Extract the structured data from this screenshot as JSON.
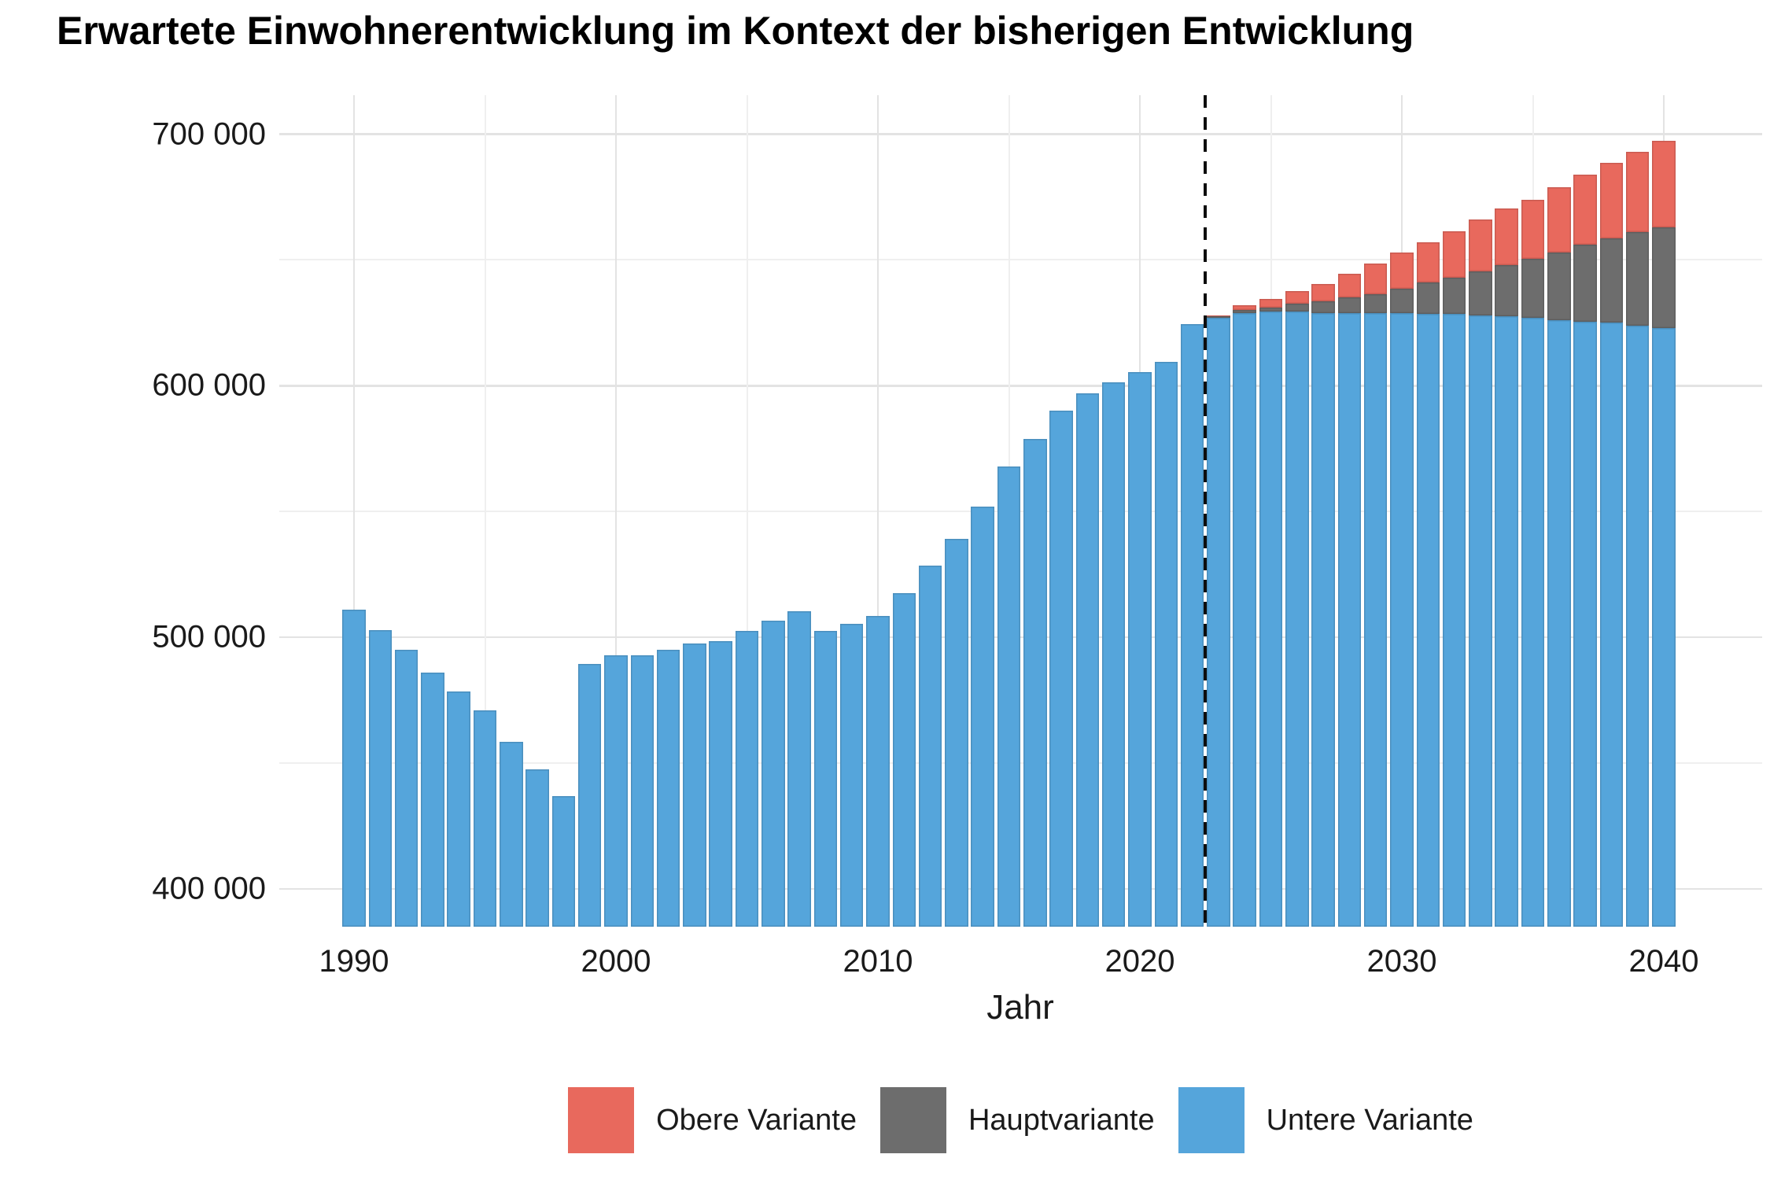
{
  "title": "Erwartete Einwohnerentwicklung im Kontext der bisherigen Entwicklung",
  "axis": {
    "x_label": "Jahr"
  },
  "colors": {
    "obere_variante": "#E8695D",
    "hauptvariante": "#6D6D6D",
    "untere_variante": "#55A5DB",
    "divider_line": "#0D0D0D",
    "grid_major": "#E3E3E3",
    "grid_minor": "#EFEFEF"
  },
  "legend": {
    "items": [
      {
        "label": "Obere Variante",
        "color": "#E8695D"
      },
      {
        "label": "Hauptvariante",
        "color": "#6D6D6D"
      },
      {
        "label": "Untere Variante",
        "color": "#55A5DB"
      }
    ]
  },
  "chart_data": {
    "type": "bar",
    "title": "Erwartete Einwohnerentwicklung im Kontext der bisherigen Entwicklung",
    "xlabel": "Jahr",
    "ylabel": "",
    "ylim": [
      385000,
      715500
    ],
    "yticks_major": [
      400000,
      500000,
      600000,
      700000
    ],
    "ytick_labels": [
      "400 000",
      "500 000",
      "600 000",
      "700 000"
    ],
    "yticks_minor": [
      450000,
      550000,
      650000
    ],
    "xticks_major": [
      1990,
      2000,
      2010,
      2020,
      2030,
      2040
    ],
    "xticks_minor": [
      1995,
      2005,
      2015,
      2025,
      2035
    ],
    "grid": true,
    "legend_position": "bottom",
    "forecast_divider_year": 2022.5,
    "series": [
      {
        "name": "Obere Variante",
        "color": "#E8695D",
        "role": "forecast-upper"
      },
      {
        "name": "Hauptvariante",
        "color": "#6D6D6D",
        "role": "forecast-main"
      },
      {
        "name": "Untere Variante",
        "color": "#55A5DB",
        "role": "historical-and-forecast-lower"
      }
    ],
    "historical": {
      "years": [
        1990,
        1991,
        1992,
        1993,
        1994,
        1995,
        1996,
        1997,
        1998,
        1999,
        2000,
        2001,
        2002,
        2003,
        2004,
        2005,
        2006,
        2007,
        2008,
        2009,
        2010,
        2011,
        2012,
        2013,
        2014,
        2015,
        2016,
        2017,
        2018,
        2019,
        2020,
        2021,
        2022
      ],
      "values": [
        511000,
        503000,
        495000,
        486000,
        478500,
        471000,
        458500,
        447500,
        437000,
        489500,
        493000,
        493000,
        495000,
        497500,
        498500,
        502500,
        506500,
        510500,
        502500,
        505500,
        508500,
        517500,
        528500,
        539000,
        552000,
        568000,
        579000,
        590000,
        597000,
        601500,
        605500,
        609500,
        624500
      ]
    },
    "forecast": {
      "years": [
        2023,
        2024,
        2025,
        2026,
        2027,
        2028,
        2029,
        2030,
        2031,
        2032,
        2033,
        2034,
        2035,
        2036,
        2037,
        2038,
        2039,
        2040
      ],
      "untere_variante": [
        627000,
        629000,
        629500,
        629500,
        629000,
        629000,
        629000,
        629000,
        628500,
        628500,
        628000,
        627500,
        627000,
        626000,
        625500,
        625000,
        624000,
        623000
      ],
      "hauptvariante": [
        627500,
        630000,
        631000,
        632500,
        633500,
        635000,
        636500,
        638500,
        641000,
        643000,
        645500,
        648000,
        650500,
        653000,
        656000,
        658500,
        661000,
        663000
      ],
      "obere_variante": [
        628000,
        632000,
        634500,
        637500,
        640500,
        644500,
        648500,
        653000,
        657000,
        661500,
        666000,
        670500,
        674000,
        679000,
        684000,
        688500,
        693000,
        697500
      ]
    }
  }
}
